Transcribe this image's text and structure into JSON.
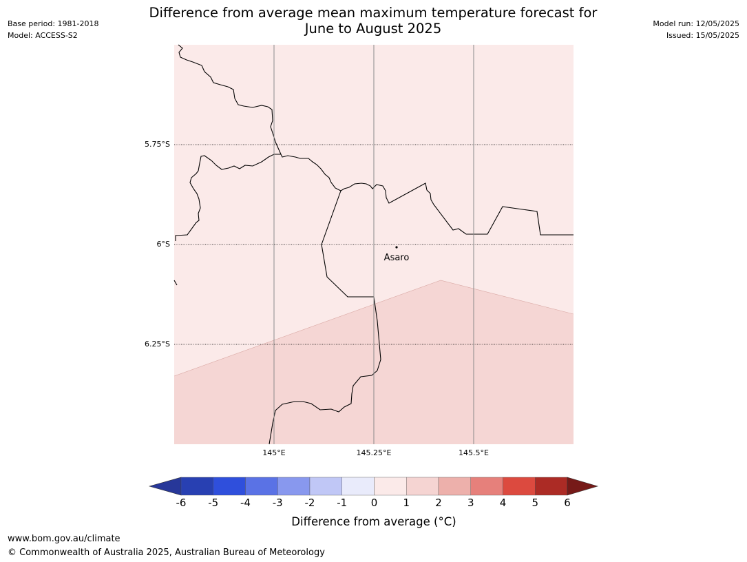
{
  "header": {
    "base_period": "Base period: 1981-2018",
    "model": "Model: ACCESS-S2",
    "title_line1": "Difference from average mean maximum temperature forecast for",
    "title_line2": "June to August 2025",
    "model_run": "Model run: 12/05/2025",
    "issued": "Issued: 15/05/2025"
  },
  "map": {
    "lat_labels": [
      "5.75°S",
      "6°S",
      "6.25°S"
    ],
    "lon_labels": [
      "145°E",
      "145.25°E",
      "145.5°E"
    ],
    "place_name": "Asaro",
    "region_colors": {
      "north": "#fbeae9",
      "south": "#f5d6d4"
    }
  },
  "legend": {
    "values": [
      -6,
      -5,
      -4,
      -3,
      -2,
      -1,
      0,
      1,
      2,
      3,
      4,
      5,
      6
    ],
    "colors": [
      "#273799",
      "#2840b2",
      "#2f4fdc",
      "#5a72e5",
      "#8898ee",
      "#c0c7f6",
      "#e9ebfb",
      "#fbeae9",
      "#f5d4d2",
      "#edb0ab",
      "#e6807b",
      "#dc4a3f",
      "#ac2b25",
      "#761a18"
    ],
    "label": "Difference from average (°C)"
  },
  "footer": {
    "url": "www.bom.gov.au/climate",
    "copyright": "© Commonwealth of Australia 2025, Australian Bureau of Meteorology"
  }
}
